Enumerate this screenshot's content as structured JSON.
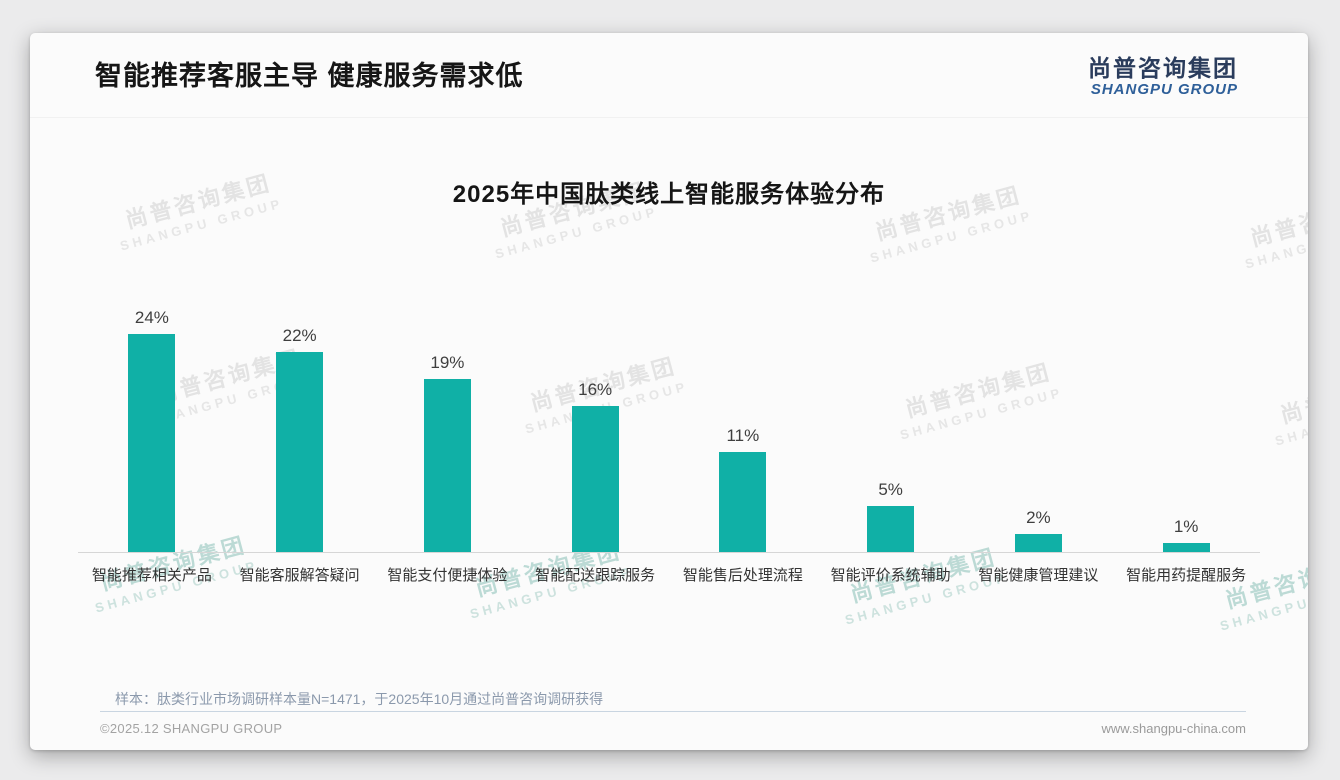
{
  "page": {
    "title": "智能推荐客服主导 健康服务需求低",
    "logo": {
      "cn": "尚普咨询集团",
      "en": "SHANGPU GROUP"
    },
    "watermark": {
      "line1": "尚普咨询集团",
      "line2": "SHANGPU GROUP"
    },
    "note": "样本：肽类行业市场调研样本量N=1471，于2025年10月通过尚普咨询调研获得",
    "footer": {
      "copyright": "©2025.12 SHANGPU GROUP",
      "website": "www.shangpu-china.com"
    }
  },
  "chart_data": {
    "type": "bar",
    "title": "2025年中国肽类线上智能服务体验分布",
    "categories": [
      "智能推荐相关产品",
      "智能客服解答疑问",
      "智能支付便捷体验",
      "智能配送跟踪服务",
      "智能售后处理流程",
      "智能评价系统辅助",
      "智能健康管理建议",
      "智能用药提醒服务"
    ],
    "values": [
      24,
      22,
      19,
      16,
      11,
      5,
      2,
      1
    ],
    "unit": "%",
    "data_labels": true,
    "bar_color": "#10b0a6",
    "axis_color": "#d6d6d6",
    "ylim": [
      0,
      26
    ],
    "grid": false,
    "legend": false,
    "xlabel": "",
    "ylabel": ""
  }
}
